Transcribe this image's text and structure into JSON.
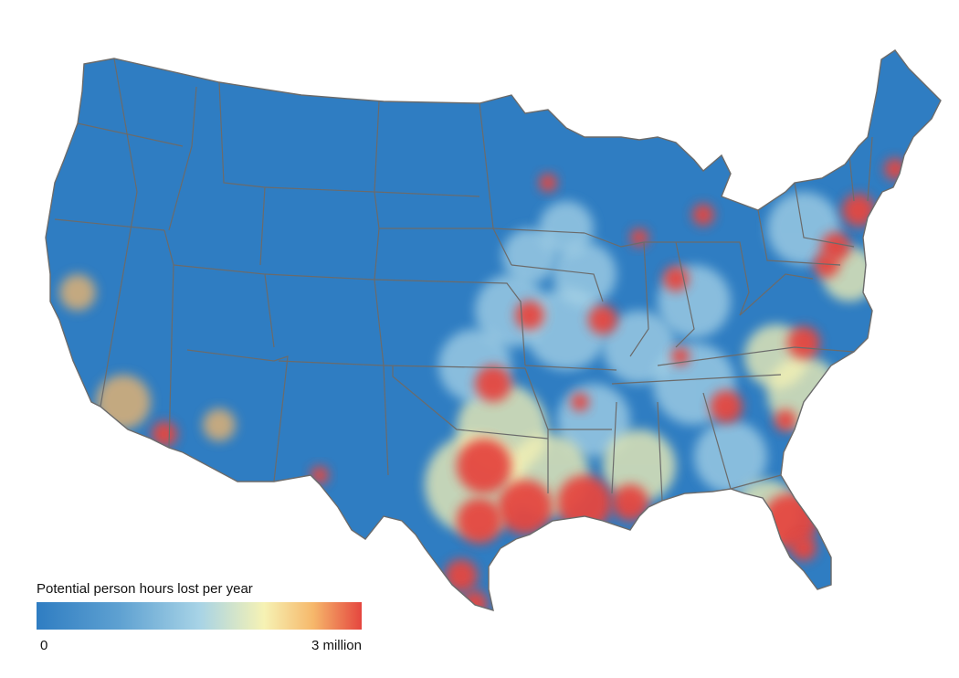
{
  "legend": {
    "title": "Potential person hours lost per year",
    "min_label": "0",
    "max_label": "3 million",
    "colors": [
      "#2f7dc2",
      "#5da0d1",
      "#a7d3e6",
      "#f6f2b4",
      "#f6b86b",
      "#e5463f"
    ]
  },
  "map_style": {
    "ocean": "#ffffff",
    "base_fill": "#2f7dc2",
    "border_color": "#6b6b6b"
  }
}
